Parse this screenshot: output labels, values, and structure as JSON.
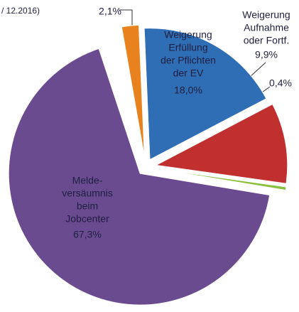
{
  "chart_data": {
    "type": "pie",
    "title": "/ 12.2016)",
    "categories": [
      null,
      [
        "Weigerung",
        "Erfüllung",
        "der Pflichten",
        "der EV"
      ],
      [
        "Weigerung",
        "Aufnahme",
        "oder Fortf."
      ],
      null,
      [
        "Melde-",
        "versäumnis",
        "beim",
        "Jobcenter"
      ]
    ],
    "values": [
      2.1,
      18.0,
      9.9,
      0.4,
      67.3
    ],
    "value_labels": [
      "2,1%",
      "18,0%",
      "9,9%",
      "0,4%",
      "67,3%"
    ],
    "colors": [
      "#e8821e",
      "#2f6db5",
      "#c0302f",
      "#8cbf3f",
      "#6b4b90"
    ]
  }
}
